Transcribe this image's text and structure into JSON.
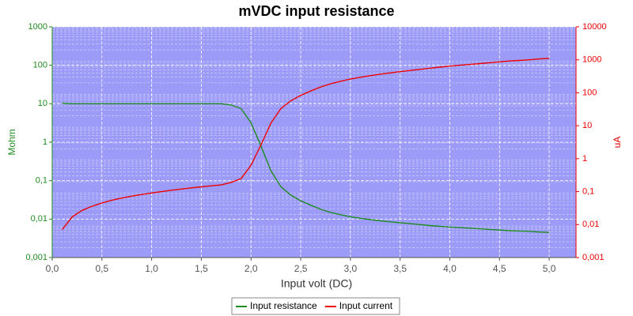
{
  "chart_data": {
    "type": "line",
    "title": "mVDC input resistance",
    "xlabel": "Input volt (DC)",
    "ylabel": "Mohm",
    "y2label": "uA",
    "x": [
      0.1,
      0.2,
      0.3,
      0.4,
      0.5,
      0.6,
      0.7,
      0.8,
      0.9,
      1.0,
      1.1,
      1.2,
      1.3,
      1.4,
      1.5,
      1.6,
      1.7,
      1.8,
      1.9,
      2.0,
      2.1,
      2.2,
      2.3,
      2.4,
      2.5,
      2.6,
      2.7,
      2.8,
      2.9,
      3.0,
      3.1,
      3.2,
      3.3,
      3.4,
      3.5,
      3.6,
      3.7,
      3.8,
      3.9,
      4.0,
      4.1,
      4.2,
      4.3,
      4.4,
      4.5,
      4.6,
      4.7,
      4.8,
      4.9,
      5.0
    ],
    "series": [
      {
        "name": "Input resistance",
        "color": "#1f8a1f",
        "axis": "y",
        "values": [
          10.3,
          10,
          10,
          10,
          10,
          10,
          10,
          10,
          10,
          10,
          10,
          10,
          10,
          10,
          10,
          10,
          10,
          9.3,
          7.5,
          3.2,
          0.8,
          0.18,
          0.07,
          0.042,
          0.03,
          0.023,
          0.018,
          0.015,
          0.013,
          0.0115,
          0.0105,
          0.0097,
          0.009,
          0.0085,
          0.008,
          0.0076,
          0.0072,
          0.0068,
          0.0065,
          0.0062,
          0.006,
          0.0058,
          0.0056,
          0.0054,
          0.0052,
          0.005,
          0.0049,
          0.0048,
          0.0046,
          0.0045
        ]
      },
      {
        "name": "Input current",
        "color": "#ee0000",
        "axis": "y2",
        "values": [
          0.007,
          0.017,
          0.027,
          0.036,
          0.045,
          0.055,
          0.064,
          0.073,
          0.082,
          0.091,
          0.1,
          0.11,
          0.12,
          0.13,
          0.14,
          0.15,
          0.16,
          0.19,
          0.25,
          0.63,
          2.6,
          12,
          33,
          57,
          83,
          113,
          150,
          187,
          223,
          261,
          295,
          330,
          367,
          400,
          437,
          474,
          514,
          559,
          600,
          645,
          683,
          724,
          768,
          815,
          865,
          920,
          959,
          1000,
          1065,
          1111
        ]
      }
    ],
    "xlim": [
      0,
      5.27
    ],
    "xticks": [
      {
        "value": 0,
        "label": "0,0"
      },
      {
        "value": 0.5,
        "label": "0,5"
      },
      {
        "value": 1,
        "label": "1,0"
      },
      {
        "value": 1.5,
        "label": "1,5"
      },
      {
        "value": 2,
        "label": "2,0"
      },
      {
        "value": 2.5,
        "label": "2,5"
      },
      {
        "value": 3,
        "label": "3,0"
      },
      {
        "value": 3.5,
        "label": "3,5"
      },
      {
        "value": 4,
        "label": "4,0"
      },
      {
        "value": 4.5,
        "label": "4,5"
      },
      {
        "value": 5,
        "label": "5,0"
      }
    ],
    "ylim": [
      0.001,
      1000
    ],
    "yscale": "log",
    "yticks": [
      1000,
      100,
      10,
      1,
      {
        "value": 0.1,
        "label": "0,1"
      },
      {
        "value": 0.01,
        "label": "0,01"
      },
      {
        "value": 0.001,
        "label": "0,001"
      }
    ],
    "y2lim": [
      0.001,
      10000
    ],
    "y2scale": "log",
    "y2ticks": [
      10000,
      1000,
      100,
      10,
      1,
      {
        "value": 0.1,
        "label": "0,1"
      },
      {
        "value": 0.01,
        "label": "0,01"
      },
      {
        "value": 0.001,
        "label": "0,001"
      }
    ],
    "grid": true,
    "legend": "bottom",
    "background": "#9c9cf8"
  }
}
